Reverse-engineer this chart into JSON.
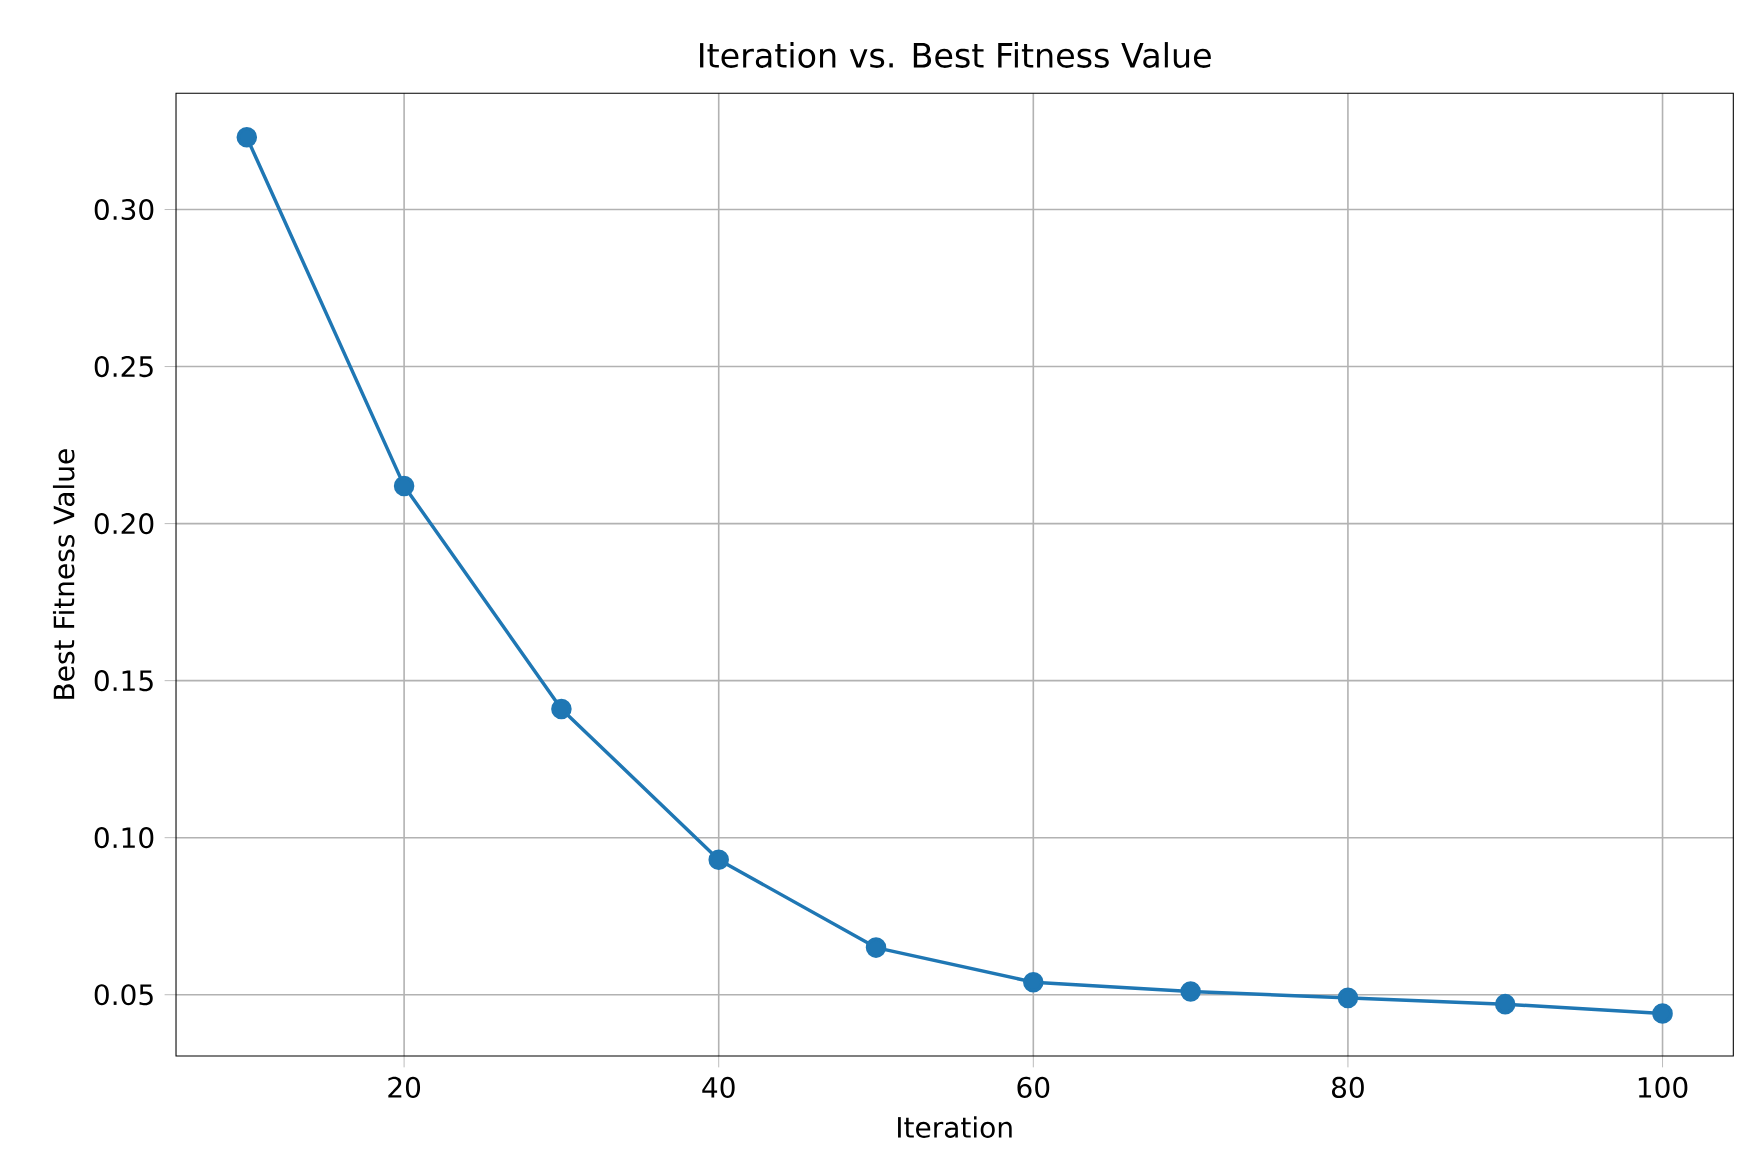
{
  "chart_data": {
    "type": "line",
    "title": "Iteration vs. Best Fitness Value",
    "xlabel": "Iteration",
    "ylabel": "Best Fitness Value",
    "x": [
      10,
      20,
      30,
      40,
      50,
      60,
      70,
      80,
      90,
      100
    ],
    "series": [
      {
        "color": "#1f77b4",
        "values": [
          0.323,
          0.212,
          0.141,
          0.093,
          0.065,
          0.054,
          0.051,
          0.049,
          0.047,
          0.044
        ]
      }
    ],
    "xlim": [
      5.5,
      104.5
    ],
    "ylim": [
      0.0305,
      0.337
    ],
    "xticks": [
      20,
      40,
      60,
      80,
      100
    ],
    "yticks": [
      {
        "value": 0.05,
        "label": "0.05"
      },
      {
        "value": 0.1,
        "label": "0.10"
      },
      {
        "value": 0.15,
        "label": "0.15"
      },
      {
        "value": 0.2,
        "label": "0.20"
      },
      {
        "value": 0.25,
        "label": "0.25"
      },
      {
        "value": 0.3,
        "label": "0.30"
      }
    ],
    "grid": true,
    "marker": "circle",
    "line_style": "solid"
  }
}
